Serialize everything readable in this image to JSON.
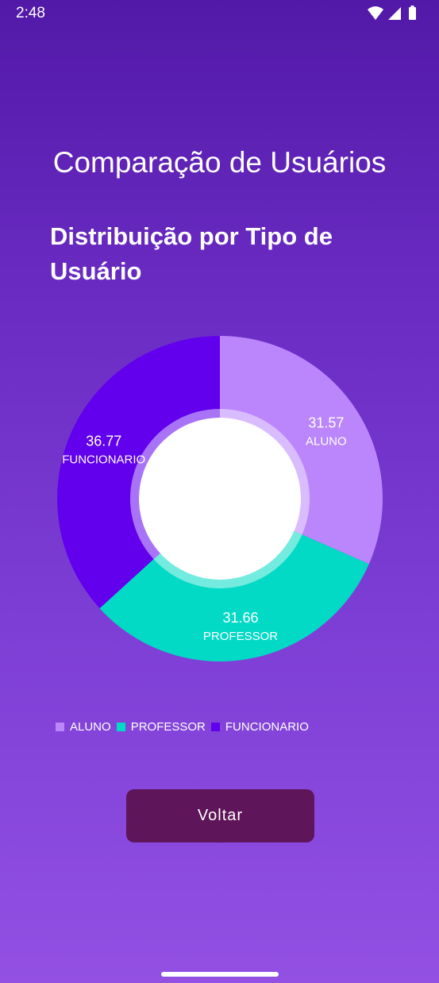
{
  "status_bar": {
    "time": "2:48",
    "icons": [
      "wifi-icon",
      "signal-icon",
      "battery-icon"
    ]
  },
  "screen": {
    "title": "Comparação de Usuários"
  },
  "buttons": {
    "back_label": "Voltar"
  },
  "colors": {
    "aluno": "#bb86fc",
    "professor": "#03dac5",
    "funcionario": "#6200ee",
    "button": "#5e1559"
  },
  "chart_data": {
    "type": "pie",
    "donut": true,
    "title": "Distribuição por Tipo de Usuário",
    "categories": [
      "ALUNO",
      "PROFESSOR",
      "FUNCIONARIO"
    ],
    "values": [
      31.57,
      31.66,
      36.77
    ],
    "value_labels": [
      "31.57",
      "31.66",
      "36.77"
    ],
    "colors": [
      "#bb86fc",
      "#03dac5",
      "#6200ee"
    ],
    "legend": {
      "position": "bottom-left",
      "entries": [
        "ALUNO",
        "PROFESSOR",
        "FUNCIONARIO"
      ]
    }
  }
}
